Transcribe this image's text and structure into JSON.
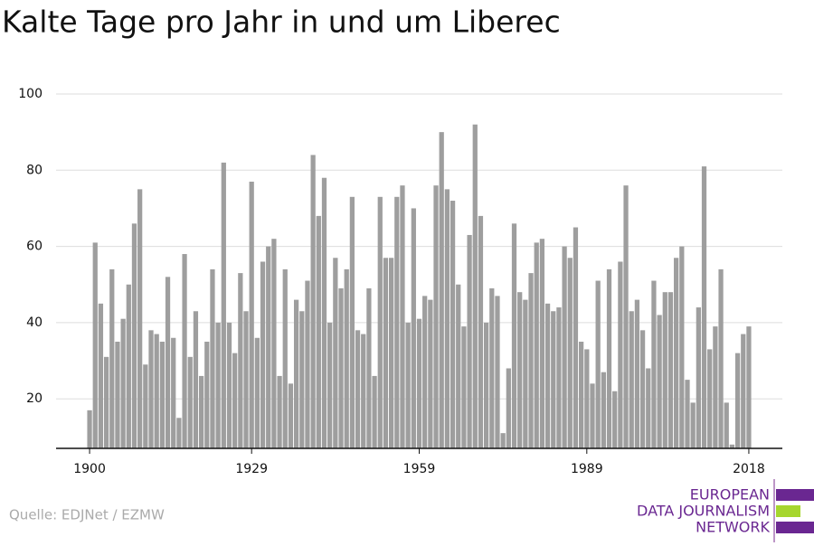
{
  "chart_data": {
    "type": "bar",
    "title": "Kalte Tage pro Jahr in und um Liberec",
    "source": "Quelle: EDJNet / EZMW",
    "logo": [
      "EUROPEAN",
      "DATA JOURNALISM",
      "NETWORK"
    ],
    "x": [
      1900,
      1901,
      1902,
      1903,
      1904,
      1905,
      1906,
      1907,
      1908,
      1909,
      1910,
      1911,
      1912,
      1913,
      1914,
      1915,
      1916,
      1917,
      1918,
      1919,
      1920,
      1921,
      1922,
      1923,
      1924,
      1925,
      1926,
      1927,
      1928,
      1929,
      1930,
      1931,
      1932,
      1933,
      1934,
      1935,
      1936,
      1937,
      1938,
      1939,
      1940,
      1941,
      1942,
      1943,
      1944,
      1945,
      1946,
      1947,
      1948,
      1949,
      1950,
      1951,
      1952,
      1953,
      1954,
      1955,
      1956,
      1957,
      1958,
      1959,
      1960,
      1961,
      1962,
      1963,
      1964,
      1965,
      1966,
      1967,
      1968,
      1969,
      1970,
      1971,
      1972,
      1973,
      1974,
      1975,
      1976,
      1977,
      1978,
      1979,
      1980,
      1981,
      1982,
      1983,
      1984,
      1985,
      1986,
      1987,
      1988,
      1989,
      1990,
      1991,
      1992,
      1993,
      1994,
      1995,
      1996,
      1997,
      1998,
      1999,
      2000,
      2001,
      2002,
      2003,
      2004,
      2005,
      2006,
      2007,
      2008,
      2009,
      2010,
      2011,
      2012,
      2013,
      2014,
      2015,
      2016,
      2017,
      2018
    ],
    "values": [
      17,
      61,
      45,
      31,
      54,
      35,
      41,
      50,
      66,
      75,
      29,
      38,
      37,
      35,
      52,
      36,
      15,
      58,
      31,
      43,
      26,
      35,
      54,
      40,
      82,
      40,
      32,
      53,
      43,
      77,
      36,
      56,
      60,
      62,
      26,
      54,
      24,
      46,
      43,
      51,
      84,
      68,
      78,
      40,
      57,
      49,
      54,
      73,
      38,
      37,
      49,
      26,
      73,
      57,
      57,
      73,
      76,
      40,
      70,
      41,
      47,
      46,
      76,
      90,
      75,
      72,
      50,
      39,
      63,
      92,
      68,
      40,
      49,
      47,
      11,
      28,
      66,
      48,
      46,
      53,
      61,
      62,
      45,
      43,
      44,
      60,
      57,
      65,
      35,
      33,
      24,
      51,
      27,
      54,
      22,
      56,
      76,
      43,
      46,
      38,
      28,
      51,
      42,
      48,
      48,
      57,
      60,
      25,
      19,
      44,
      81,
      33,
      39,
      54,
      19,
      8,
      32,
      37,
      39
    ],
    "color": "#9e9e9e",
    "xlim": [
      1894,
      2024
    ],
    "xticks": [
      1900,
      1929,
      1959,
      1989,
      2018
    ],
    "ylim": [
      7,
      100
    ],
    "yticks": [
      20,
      40,
      60,
      80,
      100
    ],
    "grid": true
  }
}
